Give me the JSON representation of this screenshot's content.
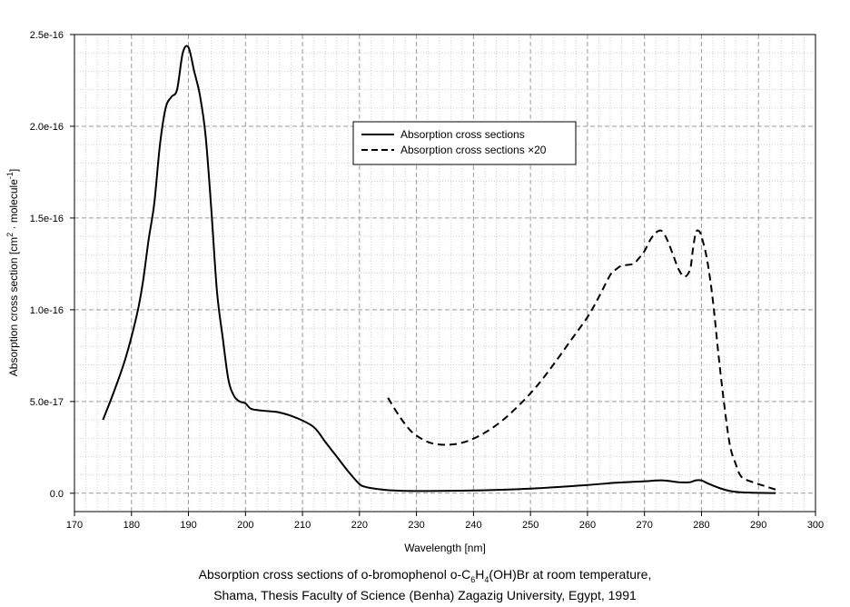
{
  "chart_data": {
    "type": "line",
    "title": "",
    "xlabel": "Wavelength [nm]",
    "ylabel": "Absorption cross section [cm² · molecule⁻¹]",
    "ylabel_parts": {
      "pre": "Absorption cross section [cm",
      "sup1": "2",
      "mid": " · molecule",
      "sup2": "-1",
      "post": "]"
    },
    "xlim": [
      170,
      300
    ],
    "ylim": [
      -1e-17,
      2.5e-16
    ],
    "x_ticks": [
      170,
      180,
      190,
      200,
      210,
      220,
      230,
      240,
      250,
      260,
      270,
      280,
      290,
      300
    ],
    "x_tick_labels": [
      "170",
      "180",
      "190",
      "200",
      "210",
      "220",
      "230",
      "240",
      "250",
      "260",
      "270",
      "280",
      "290",
      "300"
    ],
    "y_ticks": [
      0,
      5e-17,
      1e-16,
      1.5e-16,
      2e-16,
      2.5e-16
    ],
    "y_tick_labels": [
      "0.0",
      "5.0e-17",
      "1.0e-16",
      "1.5e-16",
      "2.0e-16",
      "2.5e-16"
    ],
    "grid": true,
    "legend_position": "top-center",
    "series": [
      {
        "name": "Absorption cross sections",
        "style": "solid",
        "x": [
          175,
          177,
          179,
          181,
          182,
          183,
          184,
          185,
          186,
          187,
          188,
          189,
          190,
          191,
          192,
          193,
          194,
          195,
          196,
          197,
          198,
          199,
          200,
          201,
          203,
          206,
          209,
          212,
          214,
          216,
          218,
          220,
          221,
          222,
          224,
          226,
          230,
          240,
          250,
          260,
          265,
          270,
          273,
          276,
          277,
          278,
          279,
          280,
          281,
          283,
          285,
          287,
          290,
          293
        ],
        "y": [
          4e-17,
          5.6e-17,
          7.4e-17,
          9.8e-17,
          1.15e-16,
          1.38e-16,
          1.58e-16,
          1.9e-16,
          2.1e-16,
          2.16e-16,
          2.2e-16,
          2.4e-16,
          2.43e-16,
          2.3e-16,
          2.17e-16,
          1.95e-16,
          1.55e-16,
          1.1e-16,
          8.5e-17,
          6.2e-17,
          5.3e-17,
          5e-17,
          4.9e-17,
          4.6e-17,
          4.5e-17,
          4.4e-17,
          4.1e-17,
          3.6e-17,
          2.8e-17,
          2e-17,
          1.2e-17,
          5e-18,
          3.5e-18,
          2.8e-18,
          2e-18,
          1.5e-18,
          1.2e-18,
          1.5e-18,
          2.5e-18,
          4.5e-18,
          5.7e-18,
          6.5e-18,
          7e-18,
          6e-18,
          5.9e-18,
          6e-18,
          7e-18,
          7e-18,
          5.5e-18,
          3e-18,
          1.2e-18,
          5e-19,
          2e-19,
          1e-19
        ]
      },
      {
        "name": "Absorption cross sections ×20",
        "style": "dashed",
        "x": [
          225,
          227,
          229,
          231,
          233,
          236,
          239,
          242,
          245,
          248,
          251,
          254,
          257,
          260,
          262,
          264,
          265,
          266,
          268,
          269,
          270,
          271,
          272,
          273,
          274,
          275,
          276,
          277,
          278,
          278.5,
          279,
          279.5,
          280,
          281,
          282,
          283,
          284,
          285,
          286,
          287,
          289,
          291,
          293
        ],
        "y": [
          5.2e-17,
          4.2e-17,
          3.4e-17,
          2.95e-17,
          2.7e-17,
          2.65e-17,
          2.85e-17,
          3.3e-17,
          3.95e-17,
          4.8e-17,
          5.8e-17,
          7e-17,
          8.3e-17,
          9.6e-17,
          1.07e-16,
          1.19e-16,
          1.22e-16,
          1.24e-16,
          1.25e-16,
          1.28e-16,
          1.32e-16,
          1.38e-16,
          1.42e-16,
          1.43e-16,
          1.38e-16,
          1.3e-16,
          1.22e-16,
          1.18e-16,
          1.22e-16,
          1.33e-16,
          1.42e-16,
          1.43e-16,
          1.4e-16,
          1.27e-16,
          1.05e-16,
          7.5e-17,
          4.8e-17,
          2.6e-17,
          1.6e-17,
          9e-18,
          6e-18,
          4e-18,
          2e-18
        ]
      }
    ]
  },
  "caption": {
    "line1_pre": "Absorption cross sections of o-bromophenol o-C",
    "sub1": "6",
    "mid1": "H",
    "sub2": "4",
    "line1_post": "(OH)Br at room temperature,",
    "line2": "Shama, Thesis Faculty of Science (Benha) Zagazig University, Egypt, 1991"
  }
}
